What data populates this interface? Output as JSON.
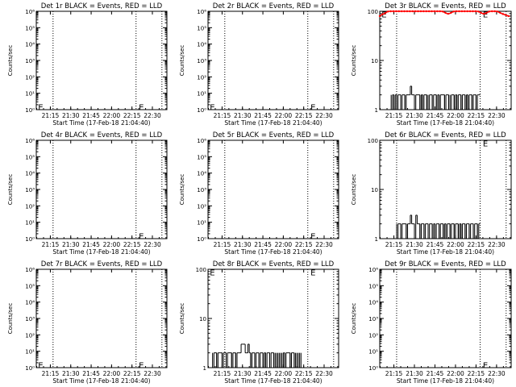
{
  "page": {
    "background": "#ffffff"
  },
  "colors": {
    "axis": "#000000",
    "events": "#000000",
    "lld": "#ff0000"
  },
  "chart_data": [
    {
      "id": "det1",
      "type": "line",
      "title": "Det 1r BLACK = Events, RED = LLD",
      "xlabel": "Start Time (17-Feb-18 21:04:40)",
      "ylabel": "Counts/sec",
      "yscale": "log",
      "ylim": [
        1,
        1000000.0
      ],
      "yticks": [
        1,
        10,
        100,
        1000,
        10000,
        100000,
        1000000
      ],
      "ytick_labels": [
        "10⁰",
        "10¹",
        "10²",
        "10³",
        "10⁴",
        "10⁵",
        "10⁶"
      ],
      "xlim": [
        "21:04:40",
        "22:40:40"
      ],
      "xticks": [
        "21:15",
        "21:30",
        "21:45",
        "22:00",
        "22:15",
        "22:30"
      ],
      "markers": [
        "21:17",
        "22:18",
        "22:37"
      ],
      "annotations": [
        {
          "text": "E",
          "x": "21:06",
          "y": 1.5
        },
        {
          "text": "E",
          "x": "22:20",
          "y": 1.5
        }
      ],
      "series": []
    },
    {
      "id": "det2",
      "type": "line",
      "title": "Det 2r BLACK = Events, RED = LLD",
      "xlabel": "Start Time (17-Feb-18 21:04:40)",
      "ylabel": "Counts/sec",
      "yscale": "log",
      "ylim": [
        1,
        1000000.0
      ],
      "yticks": [
        1,
        10,
        100,
        1000,
        10000,
        100000,
        1000000
      ],
      "ytick_labels": [
        "10⁰",
        "10¹",
        "10²",
        "10³",
        "10⁴",
        "10⁵",
        "10⁶"
      ],
      "xlim": [
        "21:04:40",
        "22:40:40"
      ],
      "xticks": [
        "21:15",
        "21:30",
        "21:45",
        "22:00",
        "22:15",
        "22:30"
      ],
      "markers": [
        "21:17",
        "22:18",
        "22:37"
      ],
      "annotations": [
        {
          "text": "E",
          "x": "21:06",
          "y": 1.5
        },
        {
          "text": "E",
          "x": "22:20",
          "y": 1.5
        }
      ],
      "series": []
    },
    {
      "id": "det3",
      "type": "line",
      "title": "Det 3r BLACK = Events, RED = LLD",
      "xlabel": "Start Time (17-Feb-18 21:04:40)",
      "ylabel": "Counts/sec",
      "yscale": "log",
      "ylim": [
        1,
        100
      ],
      "yticks": [
        1,
        10,
        100
      ],
      "ytick_labels": [
        "1",
        "10",
        "100"
      ],
      "xlim": [
        "21:04:40",
        "22:40:40"
      ],
      "xticks": [
        "21:15",
        "21:30",
        "21:45",
        "22:00",
        "22:15",
        "22:30"
      ],
      "markers": [
        "21:17",
        "22:18",
        "22:37"
      ],
      "annotations": [
        {
          "text": "E",
          "x": "21:06",
          "y": 88
        },
        {
          "text": "E",
          "x": "22:20",
          "y": 88
        }
      ],
      "series": [
        {
          "kind": "lld",
          "dx_min": 1.0,
          "values": [
            80,
            84,
            87,
            89,
            92,
            96,
            99,
            100,
            100,
            100,
            100,
            100,
            100,
            100,
            100,
            100,
            100,
            100,
            100,
            100,
            100,
            100,
            100,
            100,
            100,
            100,
            100,
            100,
            100,
            100,
            100,
            100,
            100,
            100,
            100,
            100,
            100,
            100,
            100,
            100,
            100,
            100,
            100,
            100,
            100,
            100,
            99,
            96,
            93,
            90,
            89,
            90,
            93,
            96,
            99,
            100,
            100,
            100,
            100,
            100,
            100,
            100,
            100,
            100,
            100,
            100,
            100,
            100,
            100,
            100,
            100,
            100,
            99,
            96,
            93,
            90,
            89,
            90,
            93,
            96,
            99,
            100,
            100,
            100,
            100,
            100,
            99,
            96,
            93,
            90,
            88,
            86,
            84,
            82,
            80,
            79
          ]
        },
        {
          "kind": "events",
          "start": "21:13",
          "dx_min": 1.0,
          "values": [
            1,
            2,
            1,
            2,
            1,
            2,
            2,
            1,
            2,
            2,
            1,
            2,
            2,
            2,
            3,
            2,
            2,
            1,
            2,
            2,
            2,
            1,
            2,
            1,
            2,
            2,
            1,
            1,
            2,
            2,
            1,
            2,
            2,
            1,
            2,
            1,
            2,
            2,
            2,
            1,
            2,
            2,
            1,
            1,
            2,
            2,
            1,
            2,
            1,
            2,
            2,
            1,
            2,
            2,
            1,
            2,
            1,
            2,
            2,
            1,
            2,
            2,
            1,
            2,
            2
          ]
        }
      ]
    },
    {
      "id": "det4",
      "type": "line",
      "title": "Det 4r BLACK = Events, RED = LLD",
      "xlabel": "Start Time (17-Feb-18 21:04:40)",
      "ylabel": "Counts/sec",
      "yscale": "log",
      "ylim": [
        1,
        1000000.0
      ],
      "yticks": [
        1,
        10,
        100,
        1000,
        10000,
        100000,
        1000000
      ],
      "ytick_labels": [
        "10⁰",
        "10¹",
        "10²",
        "10³",
        "10⁴",
        "10⁵",
        "10⁶"
      ],
      "xlim": [
        "21:04:40",
        "22:40:40"
      ],
      "xticks": [
        "21:15",
        "21:30",
        "21:45",
        "22:00",
        "22:15",
        "22:30"
      ],
      "markers": [
        "21:17",
        "22:18",
        "22:37"
      ],
      "annotations": [
        {
          "text": "E",
          "x": "22:20",
          "y": 1.5
        }
      ],
      "series": []
    },
    {
      "id": "det5",
      "type": "line",
      "title": "Det 5r BLACK = Events, RED = LLD",
      "xlabel": "Start Time (17-Feb-18 21:04:40)",
      "ylabel": "Counts/sec",
      "yscale": "log",
      "ylim": [
        1,
        1000000.0
      ],
      "yticks": [
        1,
        10,
        100,
        1000,
        10000,
        100000,
        1000000
      ],
      "ytick_labels": [
        "10⁰",
        "10¹",
        "10²",
        "10³",
        "10⁴",
        "10⁵",
        "10⁶"
      ],
      "xlim": [
        "21:04:40",
        "22:40:40"
      ],
      "xticks": [
        "21:15",
        "21:30",
        "21:45",
        "22:00",
        "22:15",
        "22:30"
      ],
      "markers": [
        "21:17",
        "22:18",
        "22:37"
      ],
      "annotations": [
        {
          "text": "E",
          "x": "22:20",
          "y": 1.5
        }
      ],
      "series": []
    },
    {
      "id": "det6",
      "type": "line",
      "title": "Det 6r BLACK = Events, RED = LLD",
      "xlabel": "Start Time (17-Feb-18 21:04:40)",
      "ylabel": "Counts/sec",
      "yscale": "log",
      "ylim": [
        1,
        100
      ],
      "yticks": [
        1,
        10,
        100
      ],
      "ytick_labels": [
        "1",
        "10",
        "100"
      ],
      "xlim": [
        "21:04:40",
        "22:40:40"
      ],
      "xticks": [
        "21:15",
        "21:30",
        "21:45",
        "22:00",
        "22:15",
        "22:30"
      ],
      "markers": [
        "21:17",
        "22:18",
        "22:37"
      ],
      "annotations": [
        {
          "text": "E",
          "x": "22:20",
          "y": 88
        }
      ],
      "series": [
        {
          "kind": "events",
          "start": "21:17",
          "dx_min": 1.0,
          "values": [
            1,
            2,
            2,
            1,
            2,
            2,
            2,
            1,
            2,
            2,
            3,
            2,
            2,
            1,
            3,
            2,
            2,
            1,
            2,
            2,
            1,
            2,
            2,
            1,
            2,
            2,
            1,
            2,
            1,
            2,
            2,
            1,
            2,
            2,
            1,
            2,
            1,
            2,
            2,
            1,
            2,
            2,
            1,
            2,
            2,
            1,
            2,
            1,
            2,
            2,
            1,
            2,
            2,
            1,
            2,
            2,
            1,
            2,
            2,
            1,
            2
          ]
        }
      ]
    },
    {
      "id": "det7",
      "type": "line",
      "title": "Det 7r BLACK = Events, RED = LLD",
      "xlabel": "Start Time (17-Feb-18 21:04:40)",
      "ylabel": "Counts/sec",
      "yscale": "log",
      "ylim": [
        1,
        1000000.0
      ],
      "yticks": [
        1,
        10,
        100,
        1000,
        10000,
        100000,
        1000000
      ],
      "ytick_labels": [
        "10⁰",
        "10¹",
        "10²",
        "10³",
        "10⁴",
        "10⁵",
        "10⁶"
      ],
      "xlim": [
        "21:04:40",
        "22:40:40"
      ],
      "xticks": [
        "21:15",
        "21:30",
        "21:45",
        "22:00",
        "22:15",
        "22:30"
      ],
      "markers": [
        "21:17",
        "22:18",
        "22:37"
      ],
      "annotations": [
        {
          "text": "E",
          "x": "21:06",
          "y": 1.5
        },
        {
          "text": "E",
          "x": "22:20",
          "y": 1.5
        }
      ],
      "series": []
    },
    {
      "id": "det8",
      "type": "line",
      "title": "Det 8r BLACK = Events, RED = LLD",
      "xlabel": "Start Time (17-Feb-18 21:04:40)",
      "ylabel": "Counts/sec",
      "yscale": "log",
      "ylim": [
        1,
        100
      ],
      "yticks": [
        1,
        10,
        100
      ],
      "ytick_labels": [
        "1",
        "10",
        "100"
      ],
      "xlim": [
        "21:04:40",
        "22:40:40"
      ],
      "xticks": [
        "21:15",
        "21:30",
        "21:45",
        "22:00",
        "22:15",
        "22:30"
      ],
      "markers": [
        "21:17",
        "22:18",
        "22:37"
      ],
      "annotations": [
        {
          "text": "E",
          "x": "21:06",
          "y": 88
        },
        {
          "text": "E",
          "x": "22:20",
          "y": 88
        }
      ],
      "series": [
        {
          "kind": "events",
          "start": "21:08",
          "dx_min": 1.0,
          "values": [
            1,
            2,
            2,
            1,
            2,
            2,
            2,
            1,
            2,
            2,
            1,
            2,
            2,
            2,
            1,
            2,
            2,
            1,
            2,
            2,
            2,
            3,
            3,
            3,
            2,
            2,
            3,
            2,
            1,
            2,
            2,
            1,
            2,
            2,
            1,
            2,
            2,
            1,
            2,
            1,
            2,
            2,
            1,
            2,
            2,
            1,
            1,
            1,
            1,
            1,
            1,
            1,
            2,
            1,
            2,
            2,
            2,
            1,
            2,
            2,
            1,
            1,
            1,
            1,
            1,
            1
          ]
        }
      ]
    },
    {
      "id": "det9",
      "type": "line",
      "title": "Det 9r BLACK = Events, RED = LLD",
      "xlabel": "Start Time (17-Feb-18 21:04:40)",
      "ylabel": "Counts/sec",
      "yscale": "log",
      "ylim": [
        1,
        1000000.0
      ],
      "yticks": [
        1,
        10,
        100,
        1000,
        10000,
        100000,
        1000000
      ],
      "ytick_labels": [
        "10⁰",
        "10¹",
        "10²",
        "10³",
        "10⁴",
        "10⁵",
        "10⁶"
      ],
      "xlim": [
        "21:04:40",
        "22:40:40"
      ],
      "xticks": [
        "21:15",
        "21:30",
        "21:45",
        "22:00",
        "22:15",
        "22:30"
      ],
      "markers": [
        "21:17",
        "22:18",
        "22:37"
      ],
      "annotations": [
        {
          "text": "E",
          "x": "22:20",
          "y": 1.5
        }
      ],
      "series": []
    }
  ]
}
